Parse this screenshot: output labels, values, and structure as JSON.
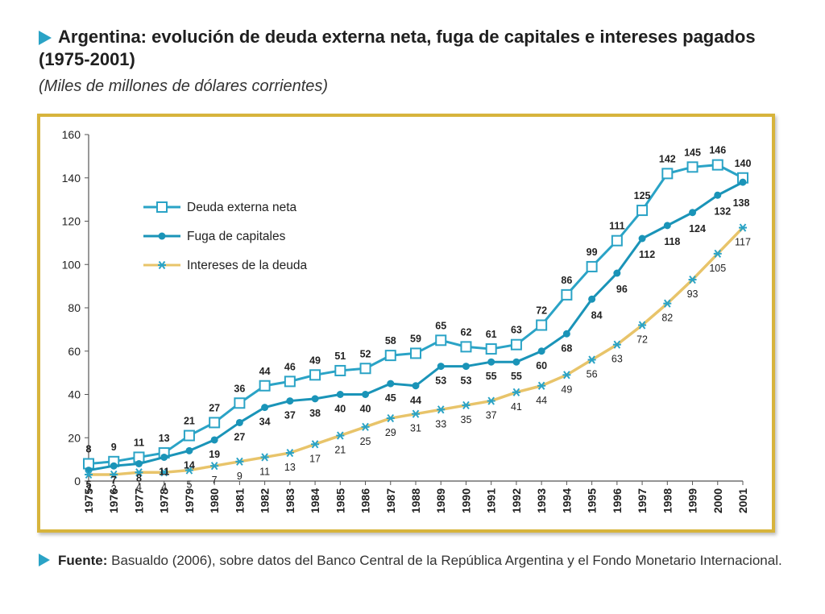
{
  "header": {
    "title": "Argentina: evolución de deuda externa neta, fuga de capitales e intereses pagados (1975-2001)",
    "subtitle": "(Miles de millones de dólares corrientes)"
  },
  "footer": {
    "source_label": "Fuente:",
    "source_text": "Basualdo (2006), sobre datos del Banco Central de la República Argentina y el Fondo Monetario Internacional."
  },
  "chart_data": {
    "type": "line",
    "x": [
      "1975",
      "1976",
      "1977",
      "1978",
      "1979",
      "1980",
      "1981",
      "1982",
      "1983",
      "1984",
      "1985",
      "1986",
      "1987",
      "1988",
      "1989",
      "1990",
      "1991",
      "1992",
      "1993",
      "1994",
      "1995",
      "1996",
      "1997",
      "1998",
      "1999",
      "2000",
      "2001"
    ],
    "ylim": [
      0,
      160
    ],
    "yticks": [
      0,
      20,
      40,
      60,
      80,
      100,
      120,
      140,
      160
    ],
    "grid": false,
    "legend_position": "top-left",
    "series": [
      {
        "name": "Deuda externa neta",
        "color": "#2aa3c6",
        "marker": "square-open",
        "values": [
          8,
          9,
          11,
          13,
          21,
          27,
          36,
          44,
          46,
          49,
          51,
          52,
          58,
          59,
          65,
          62,
          61,
          63,
          72,
          86,
          99,
          111,
          125,
          142,
          145,
          146,
          140
        ]
      },
      {
        "name": "Fuga de capitales",
        "color": "#1a94b8",
        "marker": "circle-filled",
        "values": [
          5,
          7,
          8,
          11,
          14,
          19,
          27,
          34,
          37,
          38,
          40,
          40,
          45,
          44,
          53,
          53,
          55,
          55,
          60,
          68,
          84,
          96,
          112,
          118,
          124,
          132,
          138
        ]
      },
      {
        "name": "Intereses de la deuda",
        "color": "#e8c46a",
        "marker": "asterisk",
        "marker_color": "#2aa3c6",
        "values": [
          3,
          3,
          4,
          4,
          5,
          7,
          9,
          11,
          13,
          17,
          21,
          25,
          29,
          31,
          33,
          35,
          37,
          41,
          44,
          49,
          56,
          63,
          72,
          82,
          93,
          105,
          117
        ]
      }
    ]
  }
}
